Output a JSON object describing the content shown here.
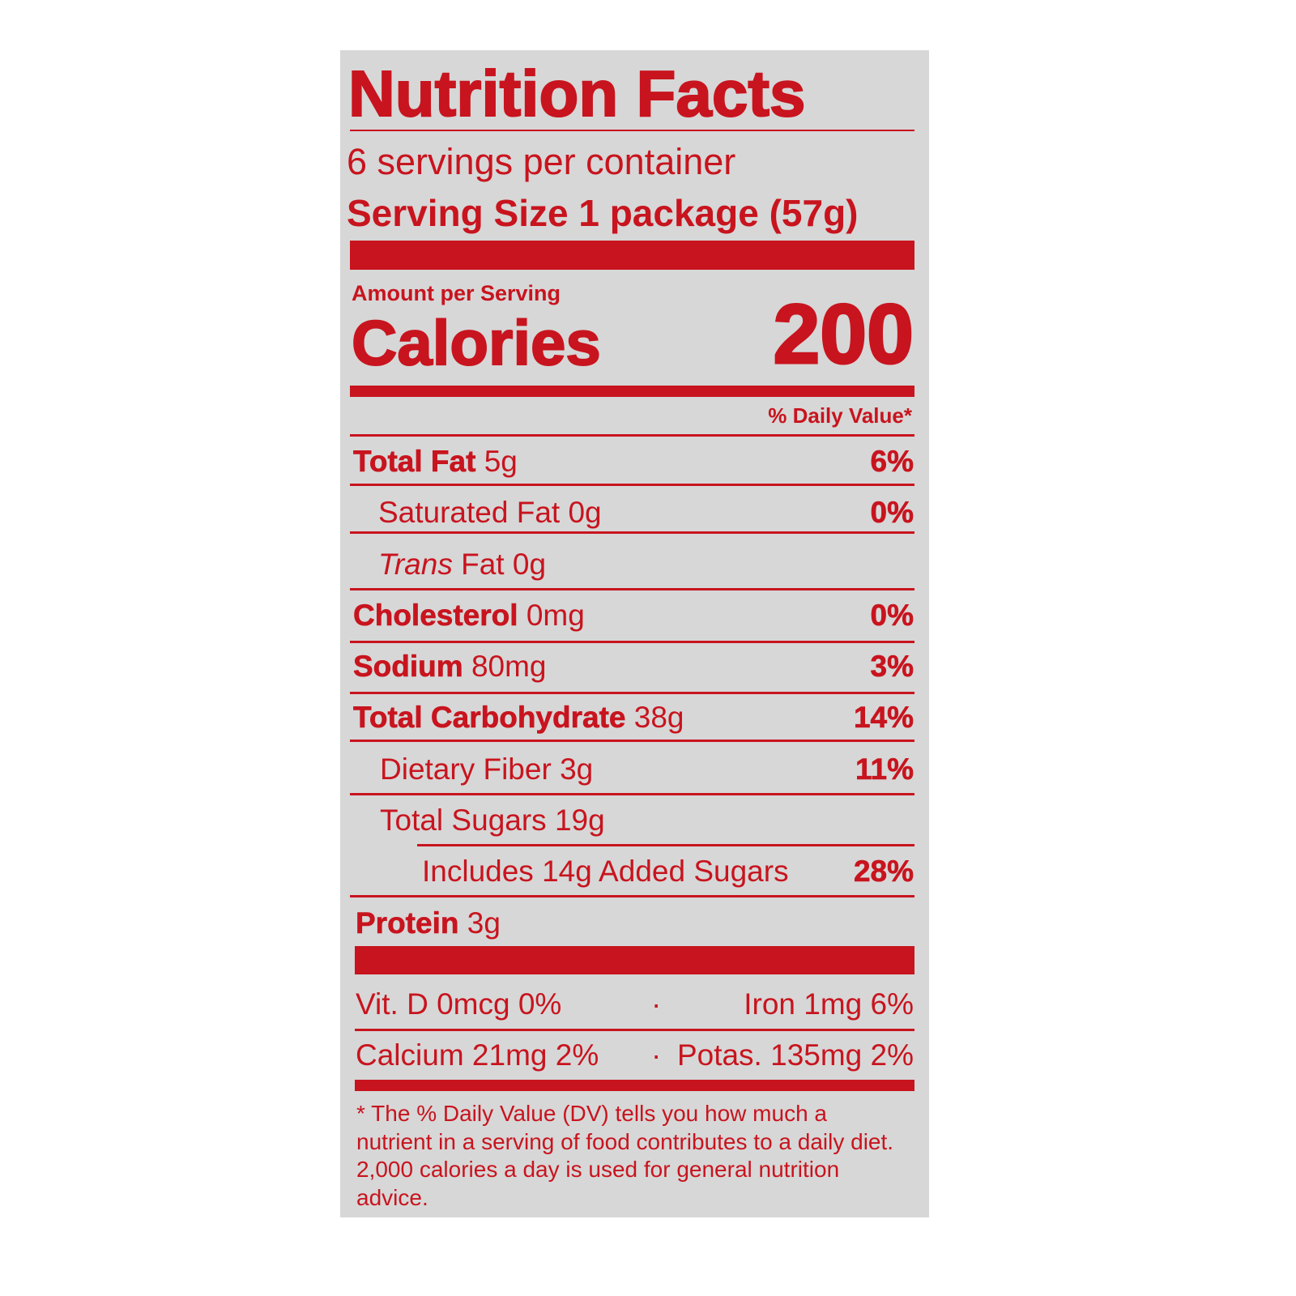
{
  "title": "Nutrition Facts",
  "servings_per_container": "6 servings per container",
  "serving_size": {
    "label": "Serving Size",
    "value": "1 package (57g)"
  },
  "amount_per_serving": "Amount per Serving",
  "calories": {
    "label": "Calories",
    "value": "200"
  },
  "daily_value_header": "% Daily Value*",
  "nutrients": [
    {
      "name": "Total Fat",
      "amount": "5g",
      "dv": "6%"
    },
    {
      "name": "Saturated Fat",
      "amount": "0g",
      "dv": "0%"
    },
    {
      "name": "Trans",
      "name_suffix": "Fat",
      "amount": "0g",
      "dv": ""
    },
    {
      "name": "Cholesterol",
      "amount": "0mg",
      "dv": "0%"
    },
    {
      "name": "Sodium",
      "amount": "80mg",
      "dv": "3%"
    },
    {
      "name": "Total Carbohydrate",
      "amount": "38g",
      "dv": "14%"
    },
    {
      "name": "Dietary Fiber",
      "amount": "3g",
      "dv": "11%"
    },
    {
      "name": "Total Sugars",
      "amount": "19g",
      "dv": ""
    },
    {
      "name": "Includes 14g Added Sugars",
      "amount": "",
      "dv": "28%"
    },
    {
      "name": "Protein",
      "amount": "3g",
      "dv": ""
    }
  ],
  "vitamins": [
    {
      "text": "Vit. D 0mcg 0%"
    },
    {
      "text": "Iron 1mg 6%"
    },
    {
      "text": "Calcium 21mg 2%"
    },
    {
      "text": "Potas. 135mg 2%"
    }
  ],
  "separator": "·",
  "footnote": "* The % Daily Value (DV) tells you how much a nutrient in a serving of food contributes to a daily diet. 2,000 calories a day is used for general nutrition advice.",
  "colors": {
    "ink": "#c8141e",
    "panel": "#d7d7d7",
    "background": "#ffffff"
  }
}
